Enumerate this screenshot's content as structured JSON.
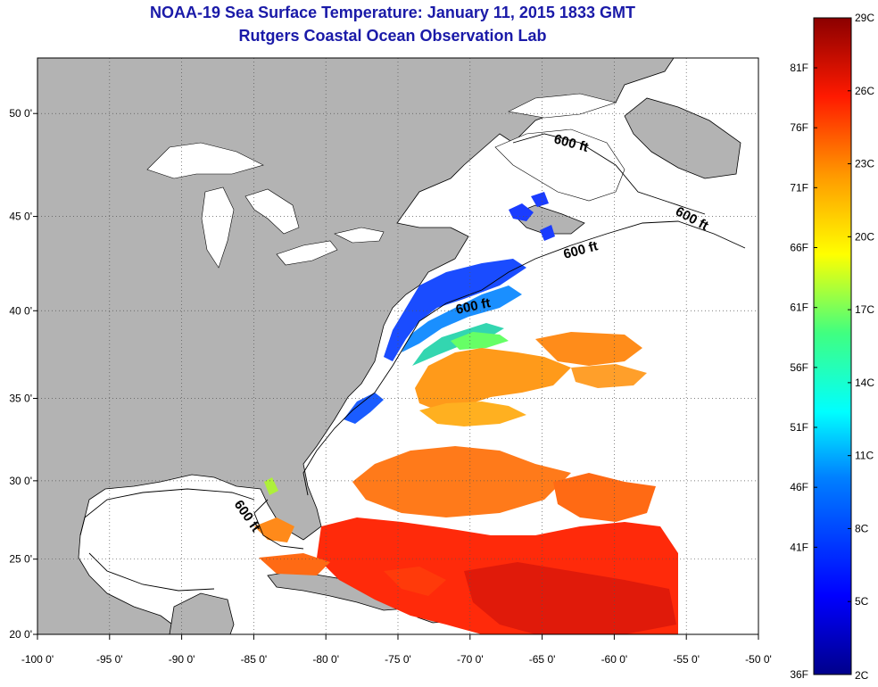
{
  "title": {
    "line1": "NOAA-19 Sea Surface Temperature:  January 11, 2015 1833 GMT",
    "line2": "Rutgers Coastal Ocean Observation Lab"
  },
  "axes": {
    "lon_ticks": [
      "-100 0'",
      "-95 0'",
      "-90 0'",
      "-85 0'",
      "-80 0'",
      "-75 0'",
      "-70 0'",
      "-65 0'",
      "-60 0'",
      "-55 0'",
      "-50 0'"
    ],
    "lat_ticks": [
      "20 0'",
      "25 0'",
      "30 0'",
      "35 0'",
      "40 0'",
      "45 0'",
      "50 0'"
    ]
  },
  "contours": {
    "label": "600 ft"
  },
  "colorbar": {
    "celsius": [
      "29C",
      "26C",
      "23C",
      "20C",
      "17C",
      "14C",
      "11C",
      "8C",
      "5C",
      "2C"
    ],
    "fahrenheit": [
      "81F",
      "76F",
      "71F",
      "66F",
      "61F",
      "56F",
      "51F",
      "46F",
      "41F",
      "36F"
    ]
  },
  "colors": {
    "land": "#b3b3b3",
    "ocean_no_data": "#ffffff",
    "title": "#1a1aa8",
    "grid": "#555555"
  }
}
